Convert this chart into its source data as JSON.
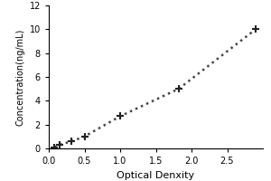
{
  "x_data": [
    0.08,
    0.15,
    0.32,
    0.5,
    1.0,
    1.82,
    2.9
  ],
  "y_data": [
    0.1,
    0.3,
    0.6,
    1.0,
    2.7,
    5.0,
    10.0
  ],
  "xlabel": "Optical Denxity",
  "ylabel": "Concentration(ng/mL)",
  "xlim": [
    0,
    3.0
  ],
  "ylim": [
    0,
    12
  ],
  "xticks": [
    0,
    0.5,
    1.0,
    1.5,
    2.0,
    2.5
  ],
  "yticks": [
    0,
    2,
    4,
    6,
    8,
    10,
    12
  ],
  "line_color": "#444444",
  "marker_color": "#222222",
  "background_color": "#ffffff",
  "line_style": "dotted",
  "marker_style": "+",
  "marker_size": 6,
  "marker_linewidth": 1.5,
  "line_width": 1.8,
  "xlabel_fontsize": 8,
  "ylabel_fontsize": 7,
  "tick_fontsize": 7
}
